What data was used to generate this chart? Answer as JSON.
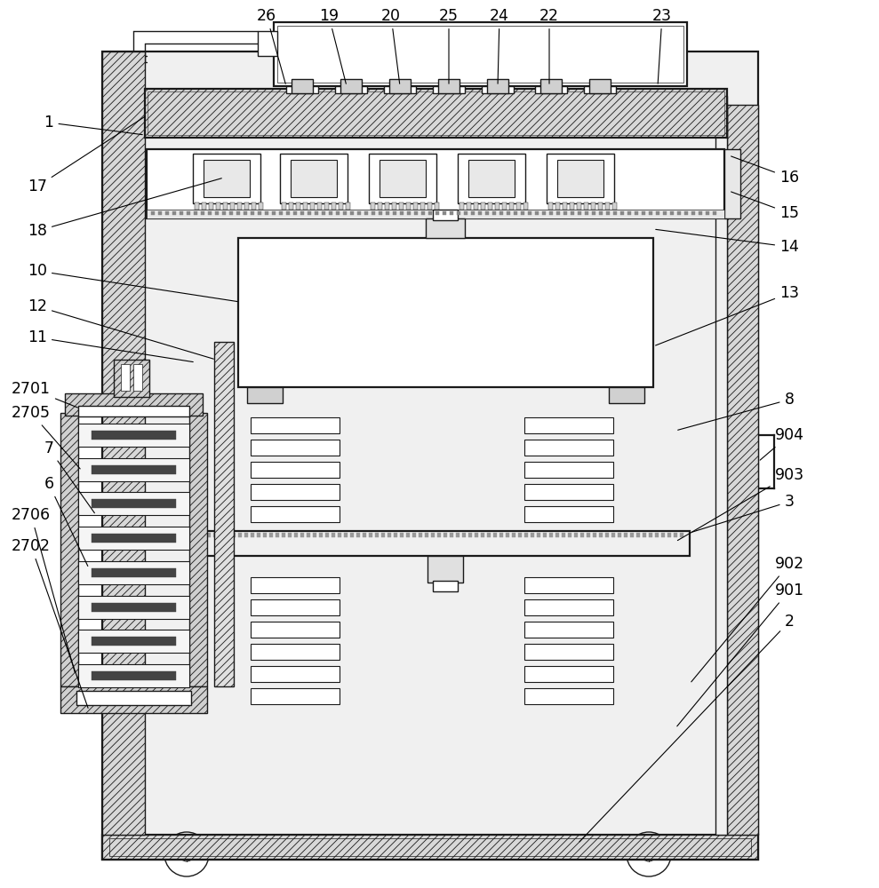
{
  "fig_width": 9.89,
  "fig_height": 10.0,
  "bg_color": "#ffffff",
  "line_color": "#1a1a1a",
  "lw": 1.0,
  "lw2": 1.6,
  "fs": 12
}
